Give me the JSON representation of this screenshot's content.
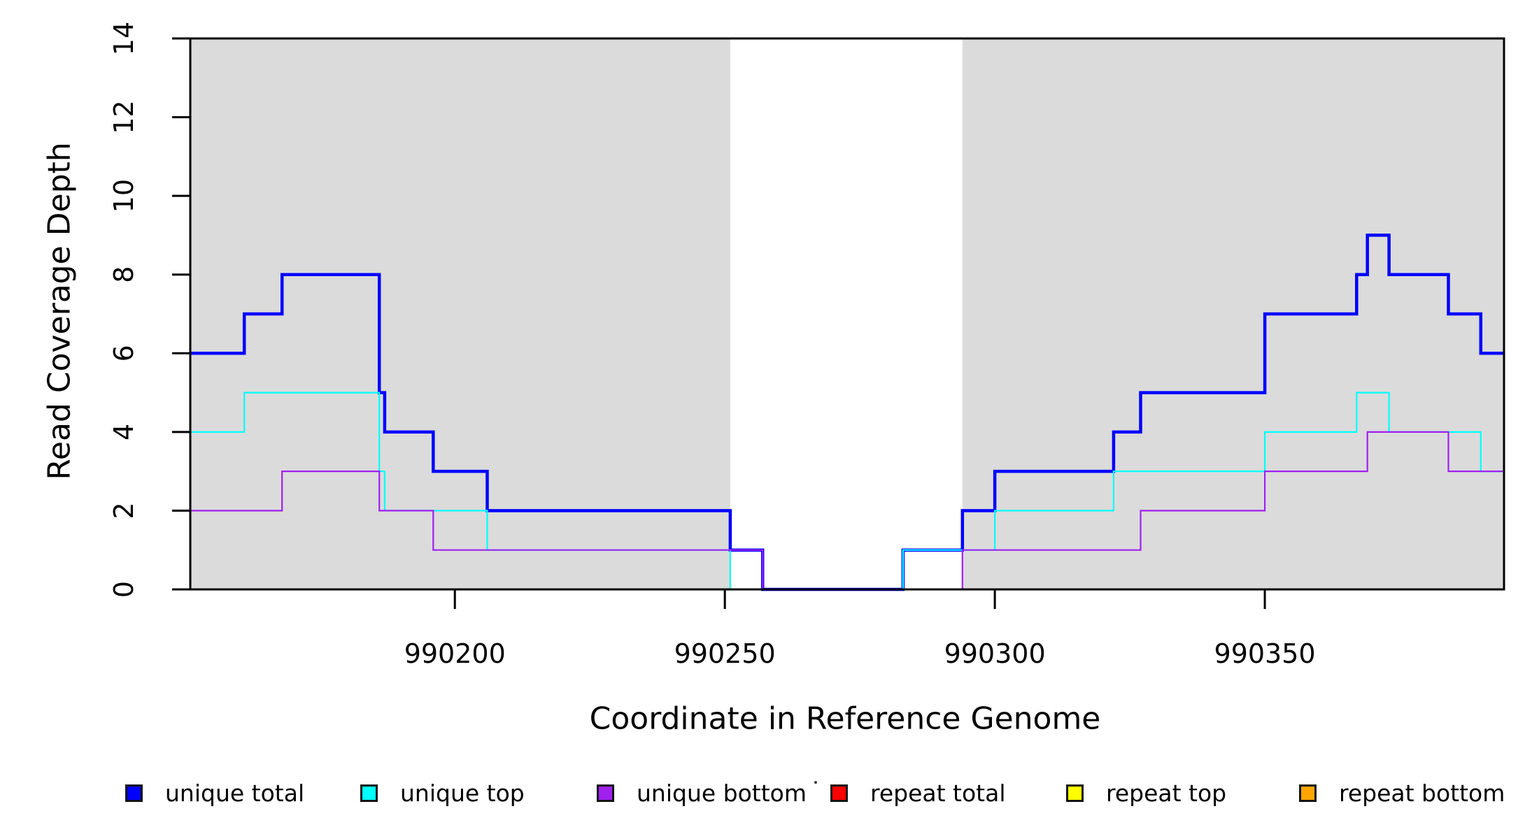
{
  "figure": {
    "xlabel": "Coordinate in Reference Genome",
    "ylabel": "Read Coverage Depth"
  },
  "legend": {
    "position": "bottom",
    "items": [
      {
        "label": "unique total",
        "color": "#0000FF"
      },
      {
        "label": "unique top",
        "color": "#00FFFF"
      },
      {
        "label": "unique bottom",
        "color": "#A020F0"
      },
      {
        "label": "repeat total",
        "color": "#FF0000"
      },
      {
        "label": "repeat top",
        "color": "#FFFF00"
      },
      {
        "label": "repeat bottom",
        "color": "#FFA500"
      }
    ]
  },
  "chart_data": {
    "type": "line",
    "step": true,
    "title": "",
    "xlabel": "Coordinate in Reference Genome",
    "ylabel": "Read Coverage Depth",
    "xlim": [
      990151,
      990394.3
    ],
    "ylim": [
      0,
      14
    ],
    "xticks": [
      990200,
      990250,
      990300,
      990350
    ],
    "yticks": [
      0,
      2,
      4,
      6,
      8,
      10,
      12,
      14
    ],
    "grid": false,
    "shade_color": "#DBDBDB",
    "background_shaded_regions": [
      [
        990151,
        990251
      ],
      [
        990294,
        990394.3
      ]
    ],
    "draw_order": [
      "repeat top",
      "repeat total",
      "repeat bottom",
      "unique total",
      "unique top",
      "unique bottom"
    ],
    "series": [
      {
        "name": "unique total",
        "color": "#0000FF",
        "width": 4.5,
        "points": [
          [
            990151,
            6
          ],
          [
            990161,
            7
          ],
          [
            990168,
            8
          ],
          [
            990186,
            5
          ],
          [
            990187,
            4
          ],
          [
            990196,
            3
          ],
          [
            990206,
            2
          ],
          [
            990251,
            1
          ],
          [
            990257,
            0
          ],
          [
            990283,
            1
          ],
          [
            990294,
            2
          ],
          [
            990300,
            3
          ],
          [
            990322,
            4
          ],
          [
            990327,
            5
          ],
          [
            990350,
            7
          ],
          [
            990367,
            8
          ],
          [
            990369,
            9
          ],
          [
            990373,
            8
          ],
          [
            990384,
            7
          ],
          [
            990390,
            6
          ]
        ]
      },
      {
        "name": "unique top",
        "color": "#00FFFF",
        "width": 2.2,
        "points": [
          [
            990151,
            4
          ],
          [
            990161,
            5
          ],
          [
            990186,
            3
          ],
          [
            990187,
            2
          ],
          [
            990206,
            1
          ],
          [
            990251,
            0
          ],
          [
            990283,
            1
          ],
          [
            990300,
            2
          ],
          [
            990322,
            3
          ],
          [
            990350,
            4
          ],
          [
            990367,
            5
          ],
          [
            990373,
            4
          ],
          [
            990390,
            3
          ]
        ]
      },
      {
        "name": "unique bottom",
        "color": "#A020F0",
        "width": 2.2,
        "points": [
          [
            990151,
            2
          ],
          [
            990168,
            3
          ],
          [
            990186,
            2
          ],
          [
            990196,
            1
          ],
          [
            990257,
            0
          ],
          [
            990294,
            1
          ],
          [
            990327,
            2
          ],
          [
            990350,
            3
          ],
          [
            990369,
            4
          ],
          [
            990384,
            3
          ]
        ]
      },
      {
        "name": "repeat total",
        "color": "#FF0000",
        "width": 2.2,
        "points": [
          [
            990151,
            0
          ]
        ]
      },
      {
        "name": "repeat top",
        "color": "#FFFF00",
        "width": 2.2,
        "points": [
          [
            990151,
            0
          ]
        ]
      },
      {
        "name": "repeat bottom",
        "color": "#FFA500",
        "width": 3,
        "points": [
          [
            990151,
            0
          ]
        ]
      }
    ]
  }
}
